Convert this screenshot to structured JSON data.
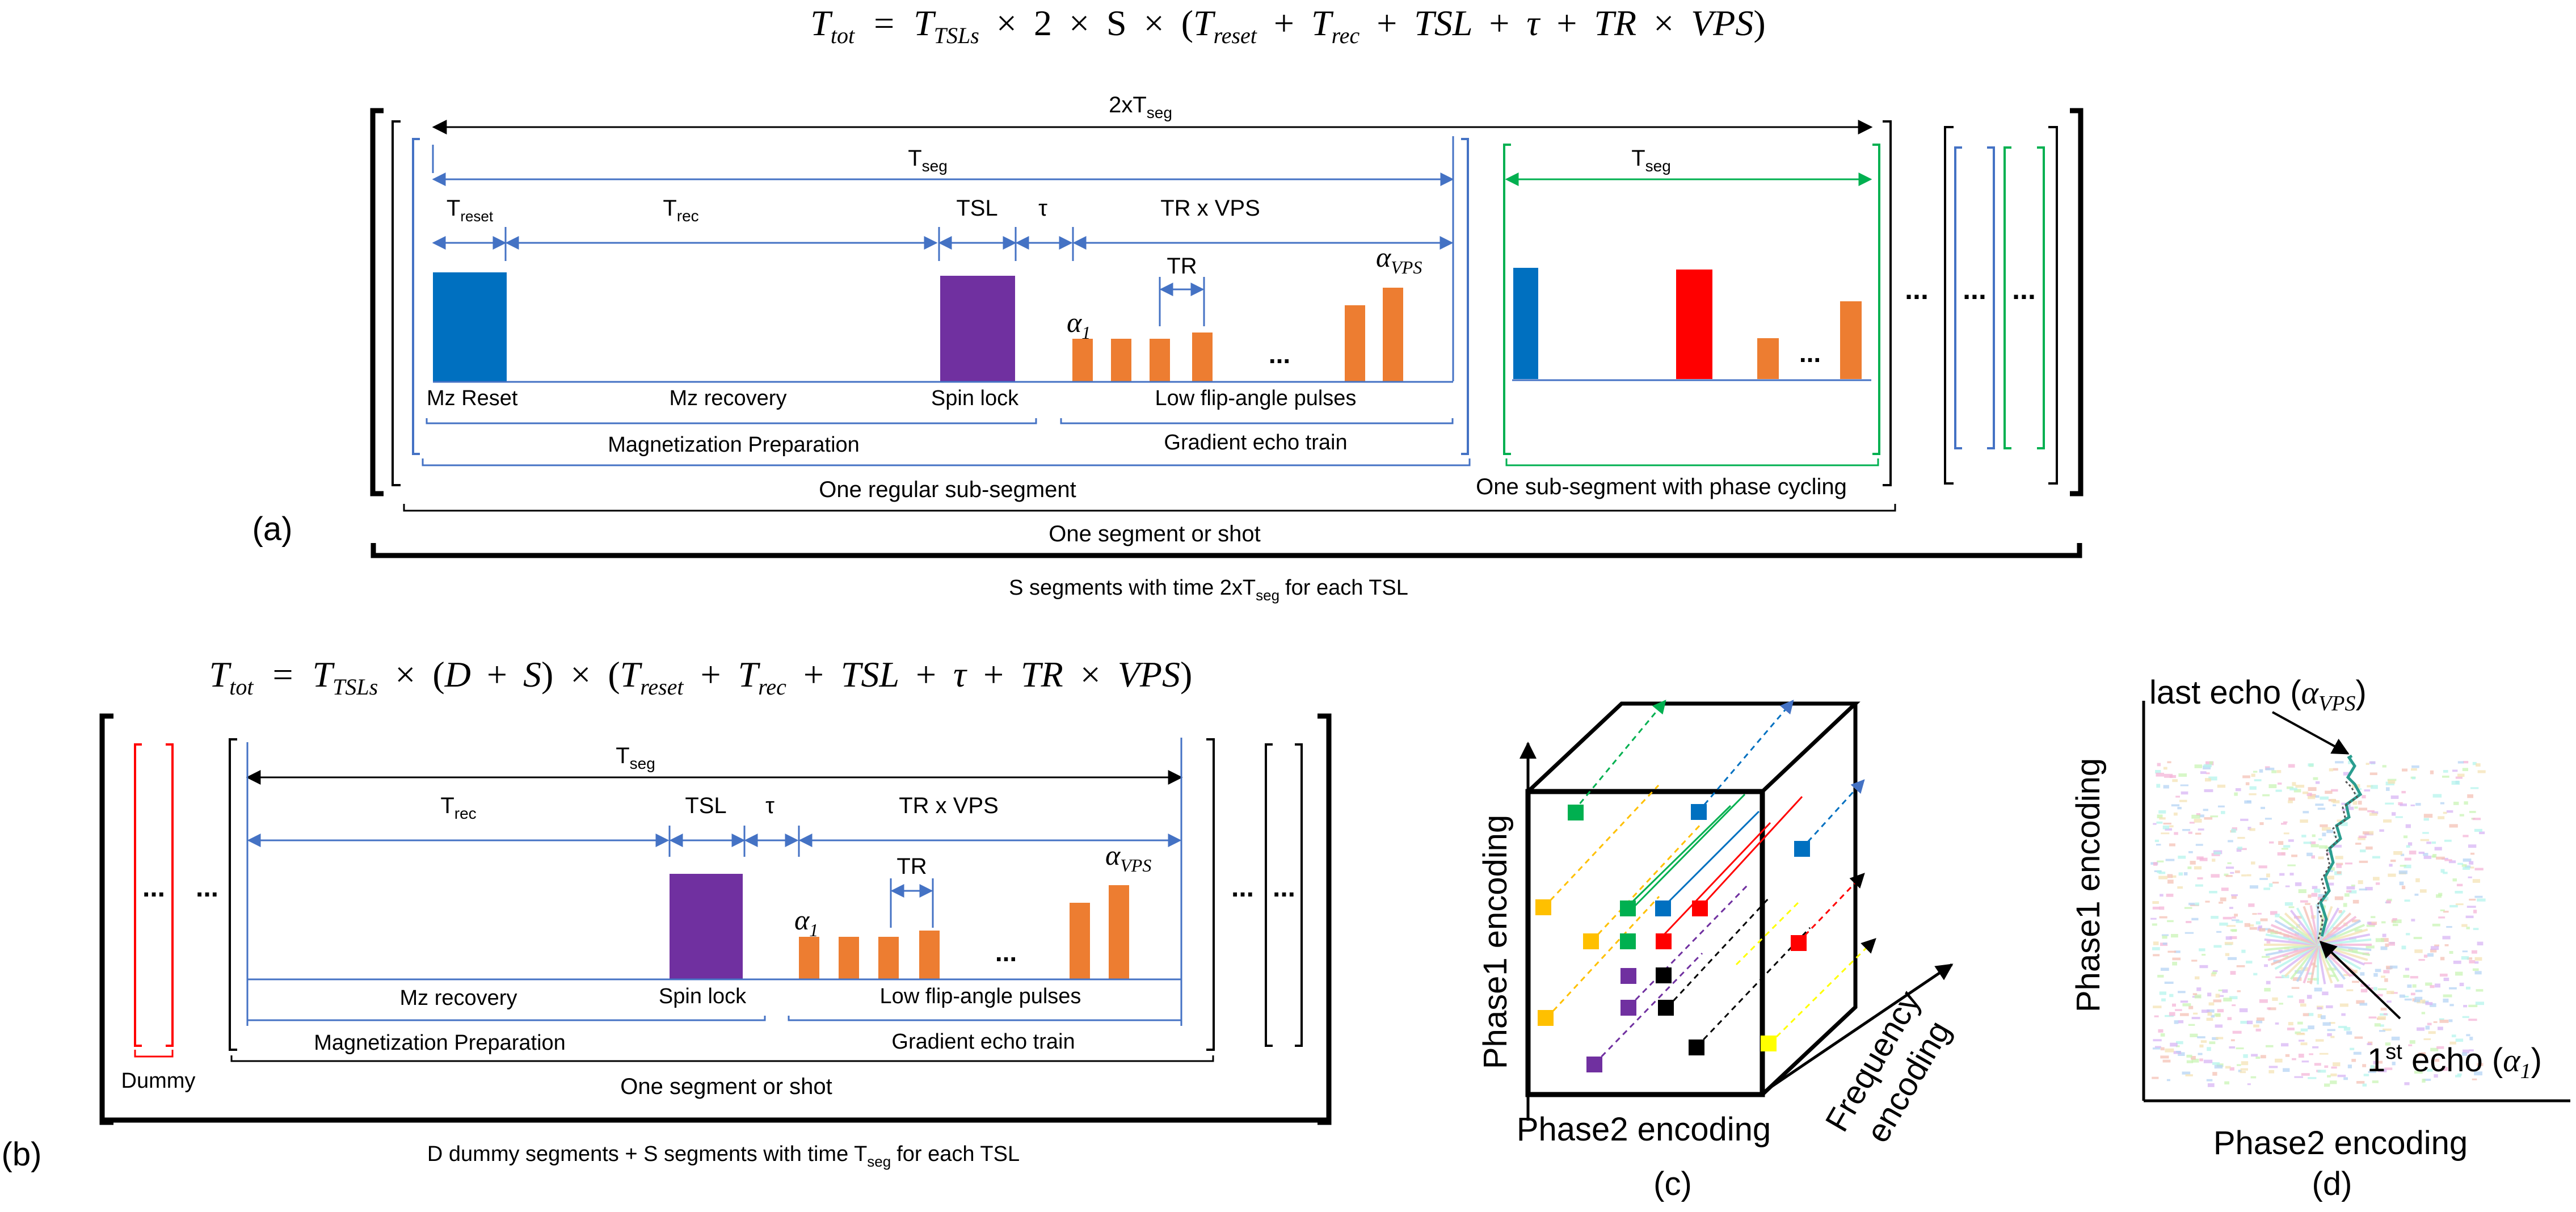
{
  "panel_a": {
    "equation": "T_tot = T_TSLs × 2 × S × (T_reset + T_rec + TSL + τ + TR × VPS)",
    "eq": {
      "t": "T",
      "tot": "tot",
      "eqsign": "=",
      "tsls": "TSLs",
      "times": "×",
      "two": "2",
      "s": "S",
      "lparen": "(",
      "reset": "reset",
      "plus": "+",
      "rec": "rec",
      "tsl": "TSL",
      "tau": "τ",
      "tr": "TR",
      "vps": "VPS",
      "rparen": ")"
    },
    "label": "(a)",
    "two_tseg": {
      "main": "2xT",
      "sub": "seg"
    },
    "tseg": {
      "main": "T",
      "sub": "seg"
    },
    "treset": {
      "main": "T",
      "sub": "reset"
    },
    "trec": {
      "main": "T",
      "sub": "rec"
    },
    "tsl": "TSL",
    "tau": "τ",
    "tr_x_vps": "TR x VPS",
    "tr": "TR",
    "alpha": "α",
    "alpha_1_sub": "1",
    "alpha_vps_sub": "VPS",
    "ellipsis": "...",
    "mz_reset": "Mz Reset",
    "mz_recovery": "Mz recovery",
    "spin_lock": "Spin lock",
    "low_flip": "Low flip-angle pulses",
    "mag_prep": "Magnetization Preparation",
    "grad_echo": "Gradient echo train",
    "regular_sub": "One regular sub-segment",
    "phase_cyc_sub": "One sub-segment with phase cycling",
    "one_segment": "One segment or shot",
    "s_segments": {
      "pre": "S segments with time 2xT",
      "sub": "seg",
      "post": "for each TSL"
    }
  },
  "panel_b": {
    "equation": "T_tot = T_TSLs × (D + S) × (T_reset + T_rec + TSL + τ + TR × VPS)",
    "eq": {
      "t": "T",
      "tot": "tot",
      "eqsign": "=",
      "tsls": "TSLs",
      "times": "×",
      "lparen": "(",
      "d": "D",
      "plus": "+",
      "s": "S",
      "rparen": ")",
      "reset": "reset",
      "rec": "rec",
      "tsl": "TSL",
      "tau": "τ",
      "tr": "TR",
      "vps": "VPS"
    },
    "label": "(b)",
    "tseg": {
      "main": "T",
      "sub": "seg"
    },
    "trec": {
      "main": "T",
      "sub": "rec"
    },
    "tsl": "TSL",
    "tau": "τ",
    "tr_x_vps": "TR x VPS",
    "tr": "TR",
    "alpha": "α",
    "alpha_1_sub": "1",
    "alpha_vps_sub": "VPS",
    "ellipsis": "...",
    "dummy": "Dummy",
    "mz_recovery": "Mz recovery",
    "spin_lock": "Spin lock",
    "low_flip": "Low flip-angle pulses",
    "mag_prep": "Magnetization Preparation",
    "grad_echo": "Gradient echo train",
    "one_segment": "One segment or shot",
    "dummy_segments": {
      "pre": "D dummy  segments + S segments with time T",
      "sub": "seg",
      "post": "for each TSL"
    }
  },
  "panel_c": {
    "label": "(c)",
    "phase1": "Phase1 encoding",
    "phase2": "Phase2 encoding",
    "freq1": "Frequency",
    "freq2": "encoding"
  },
  "panel_d": {
    "label": "(d)",
    "phase1": "Phase1 encoding",
    "phase2": "Phase2 encoding",
    "last_echo": {
      "pre": "last echo (",
      "alpha": "α",
      "sub": "VPS",
      "post": ")"
    },
    "first_echo": {
      "pre": "1",
      "sup": "st",
      "mid": " echo (",
      "alpha": "α",
      "sub": "1",
      "post": ")"
    }
  },
  "colors": {
    "blue": "#4472c4",
    "green": "#00b050",
    "red": "#ff0000",
    "orange": "#ed7d31",
    "purple": "#7030a0",
    "reset_blue": "#0070c0",
    "yellow": "#ffff00",
    "black": "#000000"
  }
}
